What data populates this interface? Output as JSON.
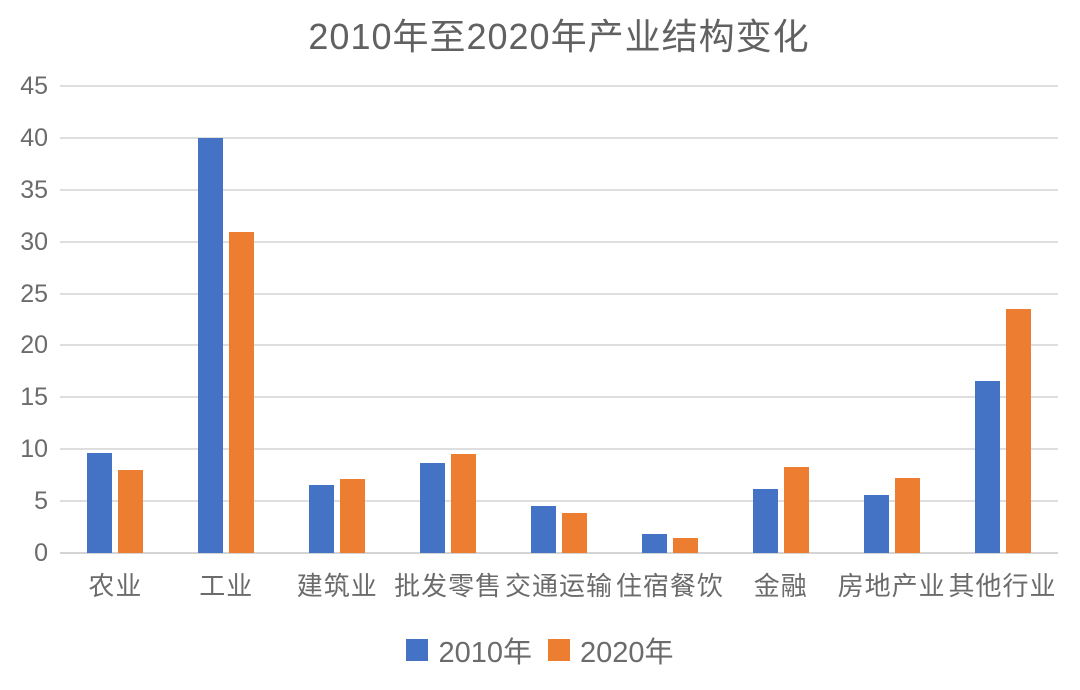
{
  "title": "2010年至2020年产业结构变化",
  "colors": {
    "series_2010": "#4472C4",
    "series_2020": "#ED7D31",
    "gridline": "#DEDEDE",
    "axis_line": "#D4D4D4",
    "text": "#6B6B6B"
  },
  "chart_data": {
    "type": "bar",
    "title": "2010年至2020年产业结构变化",
    "categories": [
      "农业",
      "工业",
      "建筑业",
      "批发零售",
      "交通运输",
      "住宿餐饮",
      "金融",
      "房地产业",
      "其他行业"
    ],
    "series": [
      {
        "name": "2010年",
        "color": "#4472C4",
        "values": [
          9.6,
          40,
          6.6,
          8.7,
          4.5,
          1.8,
          6.2,
          5.6,
          16.6
        ]
      },
      {
        "name": "2020年",
        "color": "#ED7D31",
        "values": [
          8.0,
          30.9,
          7.1,
          9.5,
          3.9,
          1.4,
          8.3,
          7.2,
          23.5
        ]
      }
    ],
    "xlabel": "",
    "ylabel": "",
    "ylim": [
      0,
      45
    ],
    "ytick_step": 5,
    "yticks": [
      45,
      40,
      35,
      30,
      25,
      20,
      15,
      10,
      5,
      0
    ],
    "grid": true,
    "legend_position": "bottom"
  }
}
